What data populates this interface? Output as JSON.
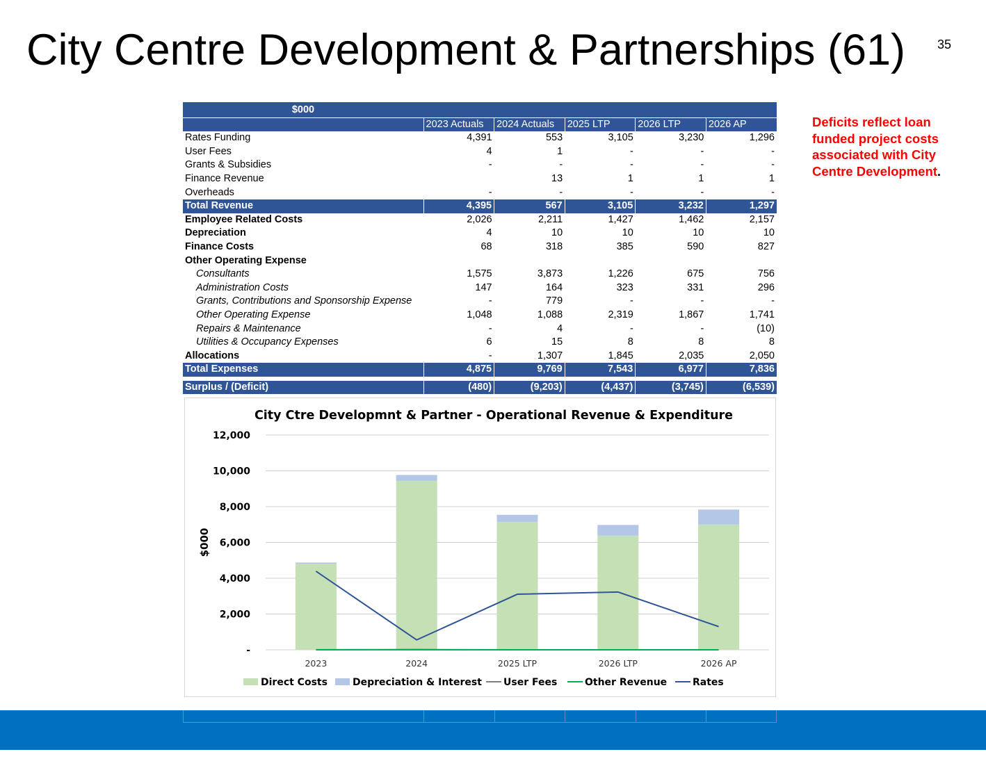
{
  "slide": {
    "title": "City Centre Development & Partnerships (61)",
    "page_number": "35",
    "note_text": "Deficits reflect loan funded project costs associated with City Centre Development",
    "note_period": "."
  },
  "table": {
    "unit_label": "$000",
    "columns": [
      "2023 Actuals",
      "2024 Actuals",
      "2025 LTP",
      "2026 LTP",
      "2026 AP"
    ],
    "rows": [
      {
        "label": "Rates Funding",
        "style": "normal",
        "values": [
          "4,391",
          "553",
          "3,105",
          "3,230",
          "1,296"
        ]
      },
      {
        "label": "User Fees",
        "style": "normal",
        "values": [
          "4",
          "1",
          "-",
          "-",
          "-"
        ]
      },
      {
        "label": "Grants & Subsidies",
        "style": "normal",
        "values": [
          "-",
          "-",
          "-",
          "-",
          "-"
        ]
      },
      {
        "label": "Finance Revenue",
        "style": "normal",
        "values": [
          "",
          "13",
          "1",
          "1",
          "1"
        ]
      },
      {
        "label": "Overheads",
        "style": "normal",
        "values": [
          "-",
          "-",
          "-",
          "-",
          "-"
        ]
      },
      {
        "label": "Total Revenue",
        "style": "total",
        "values": [
          "4,395",
          "567",
          "3,105",
          "3,232",
          "1,297"
        ]
      },
      {
        "label": "Employee Related Costs",
        "style": "bold",
        "values": [
          "2,026",
          "2,211",
          "1,427",
          "1,462",
          "2,157"
        ]
      },
      {
        "label": "Depreciation",
        "style": "bold",
        "values": [
          "4",
          "10",
          "10",
          "10",
          "10"
        ]
      },
      {
        "label": "Finance Costs",
        "style": "bold",
        "values": [
          "68",
          "318",
          "385",
          "590",
          "827"
        ]
      },
      {
        "label": "Other Operating  Expense",
        "style": "bold",
        "values": [
          "",
          "",
          "",
          "",
          ""
        ]
      },
      {
        "label": "Consultants",
        "style": "sub",
        "values": [
          "1,575",
          "3,873",
          "1,226",
          "675",
          "756"
        ]
      },
      {
        "label": "Administration Costs",
        "style": "sub",
        "values": [
          "147",
          "164",
          "323",
          "331",
          "296"
        ]
      },
      {
        "label": "Grants, Contributions and Sponsorship Expense",
        "style": "sub",
        "values": [
          "-",
          "779",
          "-",
          "-",
          "-"
        ]
      },
      {
        "label": "Other Operating Expense",
        "style": "sub",
        "values": [
          "1,048",
          "1,088",
          "2,319",
          "1,867",
          "1,741"
        ]
      },
      {
        "label": "Repairs & Maintenance",
        "style": "sub",
        "values": [
          "-",
          "4",
          "-",
          "-",
          "(10)"
        ]
      },
      {
        "label": "Utilities & Occupancy Expenses",
        "style": "sub",
        "values": [
          "6",
          "15",
          "8",
          "8",
          "8"
        ]
      },
      {
        "label": "Allocations",
        "style": "bold",
        "values": [
          "-",
          "1,307",
          "1,845",
          "2,035",
          "2,050"
        ]
      },
      {
        "label": "Total Expenses",
        "style": "total",
        "values": [
          "4,875",
          "9,769",
          "7,543",
          "6,977",
          "7,836"
        ]
      },
      {
        "label": "",
        "style": "gap",
        "values": [
          "",
          "",
          "",
          "",
          ""
        ]
      },
      {
        "label": "Surplus / (Deficit)",
        "style": "total",
        "values": [
          "(480)",
          "(9,203)",
          "(4,437)",
          "(3,745)",
          "(6,539)"
        ]
      }
    ]
  },
  "chart_data": {
    "type": "bar",
    "title": "City Ctre Developmnt & Partner - Operational Revenue & Expenditure",
    "ylabel": "$000",
    "xlabel": "",
    "ylim": [
      0,
      12000
    ],
    "yticks": [
      0,
      2000,
      4000,
      6000,
      8000,
      10000,
      12000
    ],
    "ytick_labels": [
      "-",
      "2,000",
      "4,000",
      "6,000",
      "8,000",
      "10,000",
      "12,000"
    ],
    "categories": [
      "2023",
      "2024",
      "2025 LTP",
      "2026 LTP",
      "2026 AP"
    ],
    "stacked": true,
    "grid": true,
    "legend_position": "bottom",
    "series": [
      {
        "name": "Direct Costs",
        "kind": "bar",
        "color": "#c5e0b4",
        "values": [
          4803,
          9441,
          7148,
          6377,
          6999
        ]
      },
      {
        "name": "Depreciation & Interest",
        "kind": "bar",
        "color": "#b4c7e7",
        "values": [
          72,
          328,
          395,
          600,
          837
        ]
      },
      {
        "name": "User Fees",
        "kind": "line",
        "color": "#7f7f7f",
        "values": [
          4,
          1,
          0,
          0,
          0
        ]
      },
      {
        "name": "Other Revenue",
        "kind": "line",
        "color": "#00b050",
        "values": [
          0,
          13,
          1,
          1,
          1
        ]
      },
      {
        "name": "Rates",
        "kind": "line",
        "color": "#2f5597",
        "values": [
          4391,
          553,
          3105,
          3230,
          1296
        ]
      }
    ]
  },
  "colors": {
    "header_blue": "#2f5597",
    "band_blue": "#0070c0",
    "note_red": "#ff0000"
  }
}
